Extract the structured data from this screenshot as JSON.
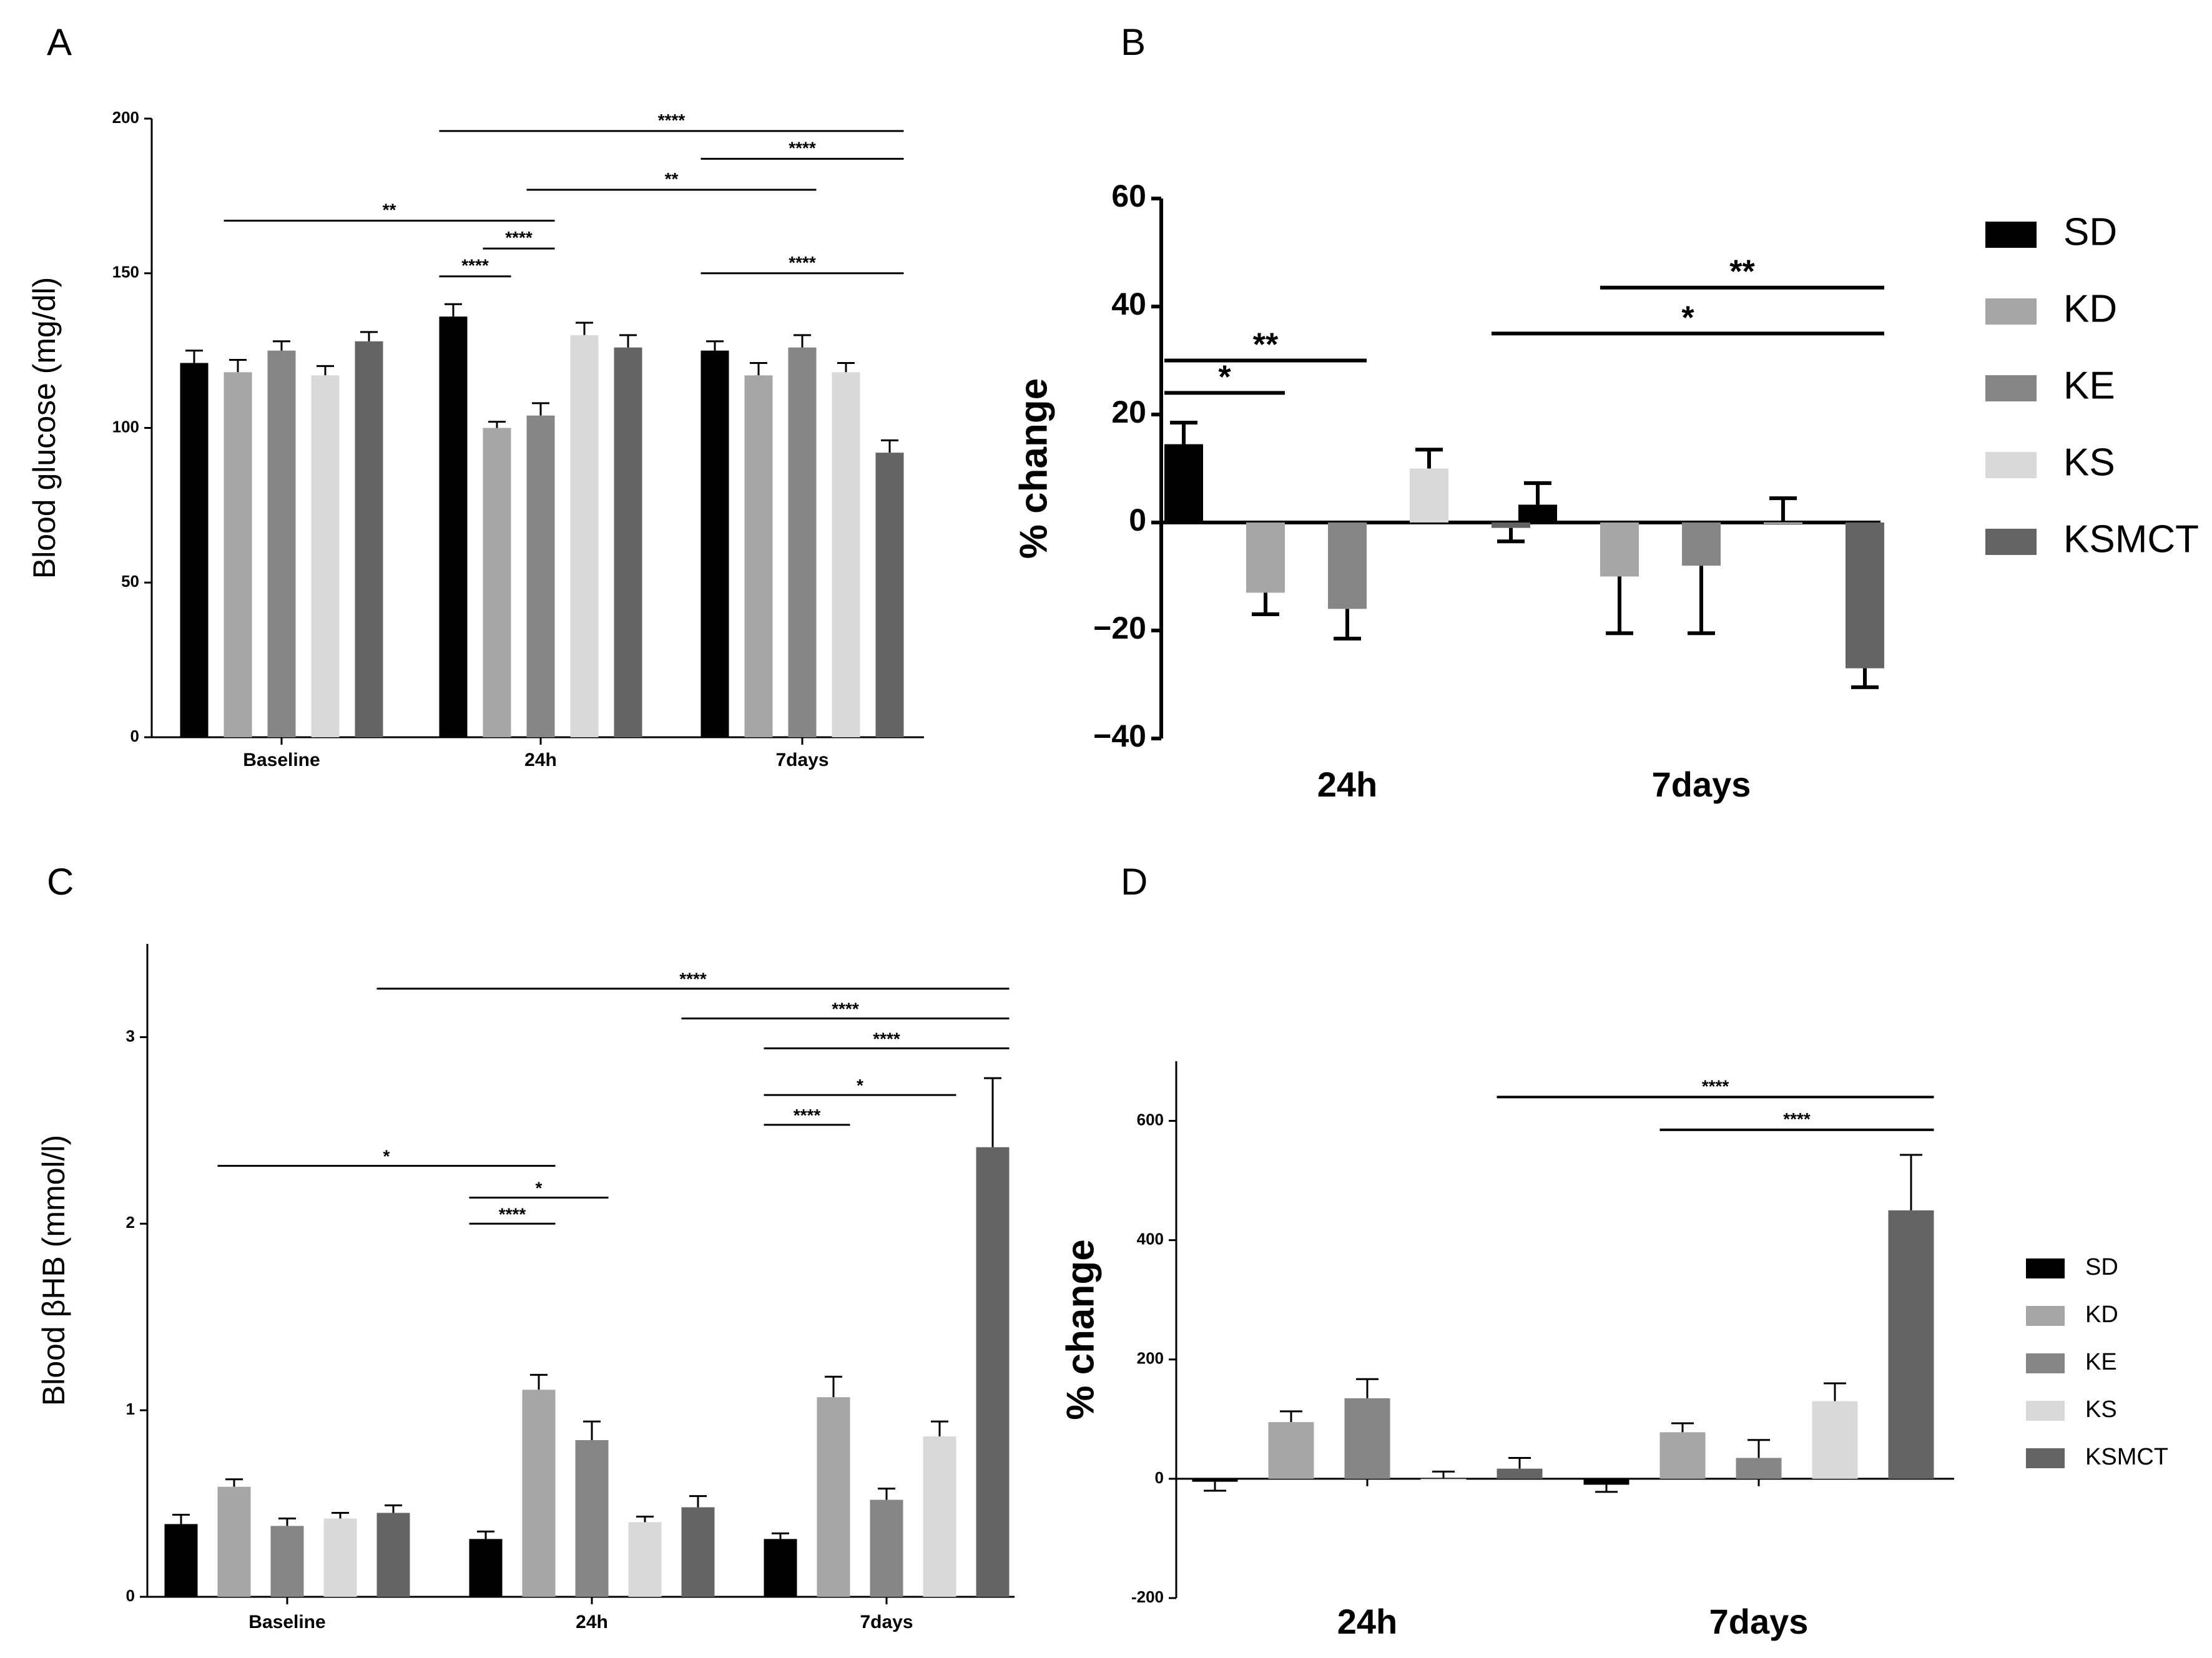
{
  "colors": {
    "SD": "#000000",
    "KD": "#a6a6a8",
    "KE": "#868686",
    "KS": "#d9d9d9",
    "KSMCT": "#646464"
  },
  "chart_data": [
    {
      "panel": "A",
      "type": "bar",
      "ylabel": "Blood glucose (mg/dl)",
      "xlabel": "",
      "ylim": [
        0,
        200
      ],
      "yticks": [
        "0",
        "50",
        "100",
        "150",
        "200"
      ],
      "categories": [
        "Baseline",
        "24h",
        "7days"
      ],
      "series": [
        {
          "name": "SD",
          "values": [
            121,
            136,
            125
          ],
          "errors": [
            4,
            4,
            3
          ]
        },
        {
          "name": "KD",
          "values": [
            118,
            100,
            117
          ],
          "errors": [
            4,
            2,
            4
          ]
        },
        {
          "name": "KE",
          "values": [
            125,
            104,
            126
          ],
          "errors": [
            3,
            4,
            4
          ]
        },
        {
          "name": "KS",
          "values": [
            117,
            130,
            118
          ],
          "errors": [
            3,
            4,
            3
          ]
        },
        {
          "name": "KSMCT",
          "values": [
            128,
            126,
            92
          ],
          "errors": [
            3,
            4,
            4
          ]
        }
      ],
      "significance": [
        {
          "from": [
            1,
            0
          ],
          "to": [
            2,
            4
          ],
          "label": "****",
          "y": 196
        },
        {
          "from": [
            2,
            0
          ],
          "to": [
            2,
            4
          ],
          "label": "****",
          "y": 187
        },
        {
          "from": [
            1,
            2
          ],
          "to": [
            2,
            2
          ],
          "label": "**",
          "y": 177
        },
        {
          "from": [
            0,
            1
          ],
          "to": [
            1,
            2
          ],
          "label": "**",
          "y": 167
        },
        {
          "from": [
            1,
            1
          ],
          "to": [
            1,
            2
          ],
          "label": "****",
          "y": 158
        },
        {
          "from": [
            1,
            0
          ],
          "to": [
            1,
            1
          ],
          "label": "****",
          "y": 149
        },
        {
          "from": [
            2,
            0
          ],
          "to": [
            2,
            4
          ],
          "label": "****",
          "y": 150
        }
      ]
    },
    {
      "panel": "B",
      "type": "bar",
      "ylabel": "% change",
      "xlabel": "",
      "ylim": [
        -40,
        60
      ],
      "yticks": [
        "−40",
        "−20",
        "0",
        "20",
        "40",
        "60"
      ],
      "categories": [
        "24h",
        "7days"
      ],
      "legend": [
        "SD",
        "KD",
        "KE",
        "KS",
        "KSMCT"
      ],
      "series": [
        {
          "name": "SD",
          "values": [
            14.5,
            3.3
          ],
          "errors": [
            4.0,
            4.0
          ]
        },
        {
          "name": "KD",
          "values": [
            -13,
            -10
          ],
          "errors": [
            4.0,
            10.5
          ]
        },
        {
          "name": "KE",
          "values": [
            -16,
            -8
          ],
          "errors": [
            5.5,
            12.5
          ]
        },
        {
          "name": "KS",
          "values": [
            10,
            0
          ],
          "errors": [
            3.5,
            4.5
          ]
        },
        {
          "name": "KSMCT",
          "values": [
            -1,
            -27
          ],
          "errors": [
            2.5,
            3.5
          ]
        }
      ],
      "significance": [
        {
          "from": [
            0,
            0
          ],
          "to": [
            0,
            1
          ],
          "label": "*",
          "y": 24
        },
        {
          "from": [
            0,
            0
          ],
          "to": [
            0,
            2
          ],
          "label": "**",
          "y": 30
        },
        {
          "from": [
            1,
            1
          ],
          "to": [
            1,
            4
          ],
          "label": "**",
          "y": 43.5
        },
        {
          "from": [
            0,
            4
          ],
          "to": [
            1,
            4
          ],
          "label": "*",
          "y": 35
        }
      ]
    },
    {
      "panel": "C",
      "type": "bar",
      "ylabel": "Blood βHB (mmol/l)",
      "xlabel": "",
      "ylim": [
        0,
        3.5
      ],
      "yticks": [
        "0",
        "1",
        "2",
        "3"
      ],
      "categories": [
        "Baseline",
        "24h",
        "7days"
      ],
      "series": [
        {
          "name": "SD",
          "values": [
            0.39,
            0.31,
            0.31
          ],
          "errors": [
            0.05,
            0.04,
            0.03
          ]
        },
        {
          "name": "KD",
          "values": [
            0.59,
            1.11,
            1.07
          ],
          "errors": [
            0.04,
            0.08,
            0.11
          ]
        },
        {
          "name": "KE",
          "values": [
            0.38,
            0.84,
            0.52
          ],
          "errors": [
            0.04,
            0.1,
            0.06
          ]
        },
        {
          "name": "KS",
          "values": [
            0.42,
            0.4,
            0.86
          ],
          "errors": [
            0.03,
            0.03,
            0.08
          ]
        },
        {
          "name": "KSMCT",
          "values": [
            0.45,
            0.48,
            2.41
          ],
          "errors": [
            0.04,
            0.06,
            0.37
          ]
        }
      ],
      "significance": [
        {
          "from": [
            0,
            4
          ],
          "to": [
            2,
            4
          ],
          "label": "****",
          "y": 3.26
        },
        {
          "from": [
            1,
            4
          ],
          "to": [
            2,
            4
          ],
          "label": "****",
          "y": 3.1
        },
        {
          "from": [
            2,
            0
          ],
          "to": [
            2,
            4
          ],
          "label": "****",
          "y": 2.94
        },
        {
          "from": [
            2,
            0
          ],
          "to": [
            2,
            3
          ],
          "label": "*",
          "y": 2.69
        },
        {
          "from": [
            2,
            0
          ],
          "to": [
            2,
            1
          ],
          "label": "****",
          "y": 2.53
        },
        {
          "from": [
            0,
            1
          ],
          "to": [
            1,
            1
          ],
          "label": "*",
          "y": 2.31
        },
        {
          "from": [
            1,
            0
          ],
          "to": [
            1,
            2
          ],
          "label": "*",
          "y": 2.14
        },
        {
          "from": [
            1,
            0
          ],
          "to": [
            1,
            1
          ],
          "label": "****",
          "y": 2.0
        }
      ]
    },
    {
      "panel": "D",
      "type": "bar",
      "ylabel": "% change",
      "xlabel": "",
      "ylim": [
        -200,
        700
      ],
      "yticks": [
        "-200",
        "0",
        "200",
        "400",
        "600"
      ],
      "categories": [
        "24h",
        "7days"
      ],
      "legend": [
        "SD",
        "KD",
        "KE",
        "KS",
        "KSMCT"
      ],
      "series": [
        {
          "name": "SD",
          "values": [
            -5,
            -10
          ],
          "errors": [
            15,
            12
          ]
        },
        {
          "name": "KD",
          "values": [
            95,
            78
          ],
          "errors": [
            18,
            15
          ]
        },
        {
          "name": "KE",
          "values": [
            135,
            35
          ],
          "errors": [
            32,
            30
          ]
        },
        {
          "name": "KS",
          "values": [
            0,
            130
          ],
          "errors": [
            12,
            30
          ]
        },
        {
          "name": "KSMCT",
          "values": [
            17,
            450
          ],
          "errors": [
            18,
            93
          ]
        }
      ],
      "significance": [
        {
          "from": [
            0,
            4
          ],
          "to": [
            1,
            4
          ],
          "label": "****",
          "y": 640
        },
        {
          "from": [
            1,
            1
          ],
          "to": [
            1,
            4
          ],
          "label": "****",
          "y": 585
        }
      ]
    }
  ]
}
